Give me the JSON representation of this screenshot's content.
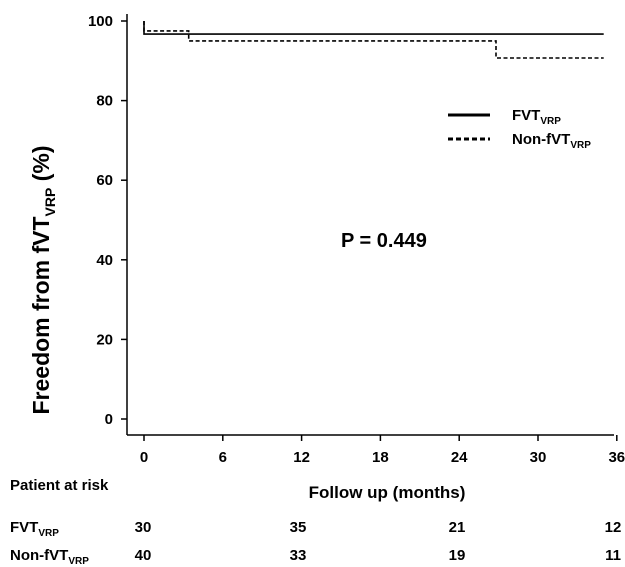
{
  "chart_data": {
    "type": "line",
    "title": "",
    "xlabel": "Follow up (months)",
    "ylabel_main": "Freedom from fVT",
    "ylabel_sub": "VRP",
    "ylabel_unit": "(%)",
    "xlim": [
      0,
      36
    ],
    "ylim": [
      0,
      100
    ],
    "xticks": [
      0,
      6,
      12,
      18,
      24,
      30,
      36
    ],
    "yticks": [
      0,
      20,
      40,
      60,
      80,
      100
    ],
    "grid": false,
    "annotation": "P = 0.449",
    "legend_position": "right",
    "series": [
      {
        "name": "FVT",
        "name_sub": "VRP",
        "style": "solid",
        "x": [
          0,
          0,
          35
        ],
        "y": [
          100,
          96.7,
          96.7
        ]
      },
      {
        "name": "Non-fVT",
        "name_sub": "VRP",
        "style": "dashed",
        "x": [
          0,
          0,
          3.4,
          3.4,
          26.8,
          26.8,
          35
        ],
        "y": [
          100,
          97.5,
          97.5,
          95,
          95,
          90.7,
          90.7
        ]
      }
    ],
    "risk_table": {
      "title": "Patient at risk",
      "columns_x": [
        0,
        12,
        24,
        36
      ],
      "rows": [
        {
          "label": "FVT",
          "label_sub": "VRP",
          "values": [
            "30",
            "35",
            "21",
            "12"
          ]
        },
        {
          "label": "Non-fVT",
          "label_sub": "VRP",
          "values": [
            "40",
            "33",
            "19",
            "11"
          ]
        }
      ]
    }
  }
}
